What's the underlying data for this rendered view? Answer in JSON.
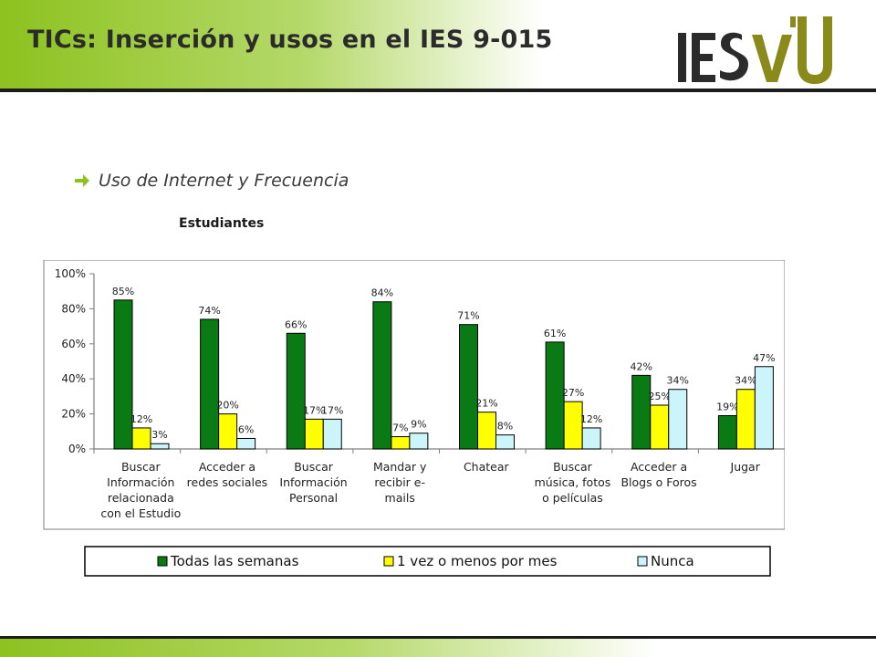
{
  "slide": {
    "title": "TICs: Inserción y usos en el IES 9-015",
    "logo_text": "IESVU",
    "bullet_text": "Uso de Internet y Frecuencia",
    "subtitle": "Estudiantes"
  },
  "colors": {
    "header_green": "#8dc21f",
    "logo_dark": "#2b2b2b",
    "logo_olive": "#8a8a1a",
    "bullet_green": "#8dc21f",
    "dark_line": "#1c1c1c"
  },
  "chart_data": {
    "type": "bar",
    "categories": [
      [
        "Buscar",
        "Información",
        "relacionada",
        "con el Estudio"
      ],
      [
        "Acceder a",
        "redes sociales"
      ],
      [
        "Buscar",
        "Información",
        "Personal"
      ],
      [
        "Mandar y",
        "recibir e-",
        "mails"
      ],
      [
        "Chatear"
      ],
      [
        "Buscar",
        "música, fotos",
        "o películas"
      ],
      [
        "Acceder a",
        "Blogs o Foros"
      ],
      [
        "Jugar"
      ]
    ],
    "series": [
      {
        "name": "Todas las semanas",
        "color": "#0a7a14",
        "values": [
          85,
          74,
          66,
          84,
          71,
          61,
          42,
          19
        ]
      },
      {
        "name": "1 vez o menos por mes",
        "color": "#ffff00",
        "values": [
          12,
          20,
          17,
          7,
          21,
          27,
          25,
          34
        ]
      },
      {
        "name": "Nunca",
        "color": "#ccf4fb",
        "values": [
          3,
          6,
          17,
          9,
          8,
          12,
          34,
          47
        ]
      }
    ],
    "ylim": [
      0,
      100
    ],
    "yticks": [
      "0%",
      "20%",
      "40%",
      "60%",
      "80%",
      "100%"
    ],
    "ytick_values": [
      0,
      20,
      40,
      60,
      80,
      100
    ],
    "value_suffix": "%",
    "legend_position": "bottom",
    "grid": false
  }
}
